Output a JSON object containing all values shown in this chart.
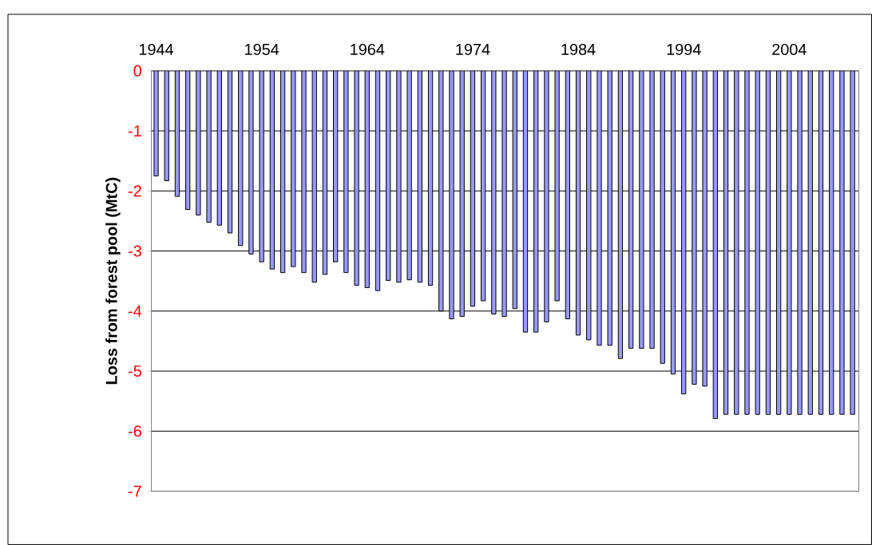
{
  "chart_data": {
    "type": "bar",
    "ylabel": "Loss from forest pool (MtC)",
    "categories": [
      "1944",
      null,
      null,
      null,
      null,
      null,
      null,
      null,
      null,
      null,
      "1954",
      null,
      null,
      null,
      null,
      null,
      null,
      null,
      null,
      null,
      "1964",
      null,
      null,
      null,
      null,
      null,
      null,
      null,
      null,
      null,
      "1974",
      null,
      null,
      null,
      null,
      null,
      null,
      null,
      null,
      null,
      "1984",
      null,
      null,
      null,
      null,
      null,
      null,
      null,
      null,
      null,
      "1994",
      null,
      null,
      null,
      null,
      null,
      null,
      null,
      null,
      null,
      "2004",
      null,
      null,
      null,
      null,
      null,
      null
    ],
    "values": [
      -1.75,
      -1.83,
      -2.09,
      -2.31,
      -2.4,
      -2.52,
      -2.57,
      -2.7,
      -2.91,
      -3.05,
      -3.18,
      -3.3,
      -3.36,
      -3.26,
      -3.36,
      -3.52,
      -3.39,
      -3.18,
      -3.36,
      -3.57,
      -3.61,
      -3.66,
      -3.49,
      -3.52,
      -3.48,
      -3.52,
      -3.57,
      -4.0,
      -4.13,
      -4.09,
      -3.92,
      -3.83,
      -4.05,
      -4.09,
      -3.96,
      -4.35,
      -4.35,
      -4.18,
      -3.83,
      -4.13,
      -4.4,
      -4.48,
      -4.57,
      -4.57,
      -4.79,
      -4.62,
      -4.62,
      -4.62,
      -4.87,
      -5.05,
      -5.38,
      -5.22,
      -5.25,
      -5.79,
      -5.72,
      -5.72,
      -5.72,
      -5.72,
      -5.72,
      -5.72,
      -5.72,
      -5.72,
      -5.72,
      -5.72,
      -5.72,
      -5.72,
      -5.72
    ],
    "color": "#9999ff",
    "ylim": [
      -7,
      0
    ],
    "yticks": [
      0,
      -1,
      -2,
      -3,
      -4,
      -5,
      -6,
      -7
    ],
    "grid": "y"
  }
}
